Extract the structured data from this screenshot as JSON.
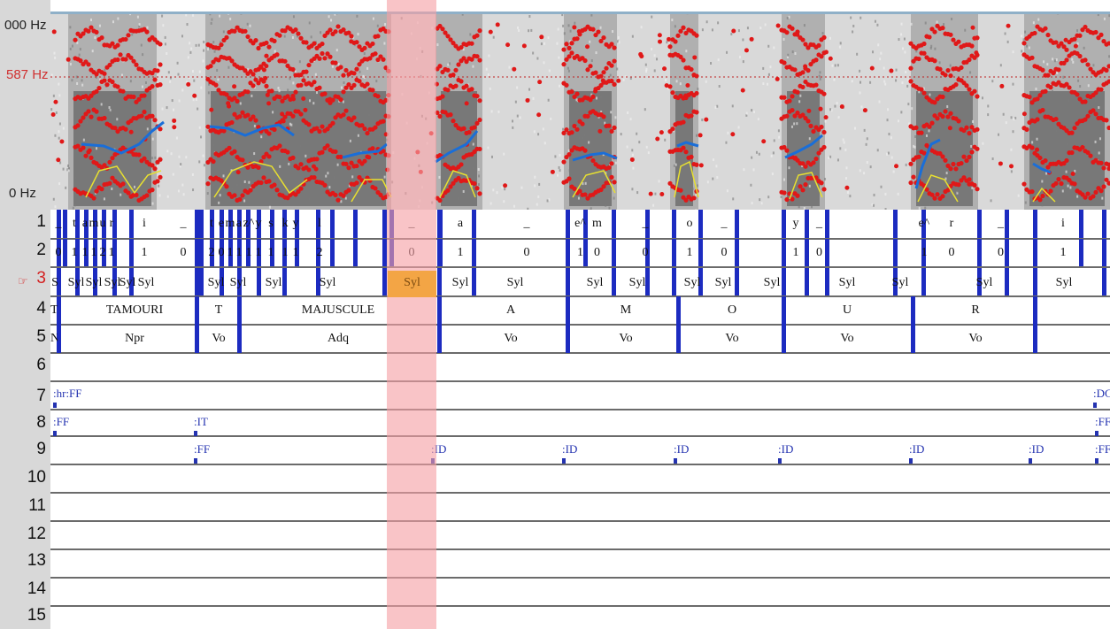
{
  "axis": {
    "top_label": "000 Hz",
    "ref_label": "587 Hz",
    "bottom_label": "0 Hz"
  },
  "active_tier_icon": "pointing-hand-icon",
  "rows": [
    "1",
    "2",
    "3",
    "4",
    "5",
    "6",
    "7",
    "8",
    "9",
    "10",
    "11",
    "12",
    "13",
    "14",
    "15"
  ],
  "tier1": [
    "_",
    "t",
    "a",
    "m",
    "u",
    "r",
    "i",
    "_",
    "t",
    "e",
    "m",
    "a",
    "z^",
    "y",
    "s",
    "k",
    "y",
    "l",
    "_",
    "a",
    "_",
    "e^",
    "m",
    "_",
    "o",
    "_",
    "y",
    "_",
    "e^",
    "r",
    "_",
    "i"
  ],
  "tier2": [
    "0",
    "1",
    "1",
    "1",
    "2",
    "1",
    "1",
    "0",
    "2",
    "0",
    "1",
    "1",
    "1",
    "1",
    "1",
    "1",
    "1",
    "2",
    "0",
    "1",
    "0",
    "1",
    "0",
    "0",
    "1",
    "0",
    "1",
    "0",
    "1",
    "0",
    "0",
    "1"
  ],
  "tier3": [
    "S",
    "Syl",
    "Syl",
    "Syl",
    "Syl",
    "Syl",
    "Syl",
    "Syl",
    "Syl",
    "Syl",
    "Syl",
    "Syl",
    "Syl",
    "Syl",
    "Syl",
    "Syl",
    "Syl",
    "Syl",
    "Syl",
    "Syl",
    "Syl",
    "Syl"
  ],
  "tier4": [
    "T",
    "TAMOURI",
    "T",
    "MAJUSCULE",
    "A",
    "M",
    "O",
    "U",
    "R"
  ],
  "tier5": [
    "N",
    "Npr",
    "Vo",
    "Adq",
    "Vo",
    "Vo",
    "Vo",
    "Vo",
    "Vo"
  ],
  "tier7": [
    ":hr:FF",
    ":DC"
  ],
  "tier8": [
    ":FF",
    ":IT",
    ":FF"
  ],
  "tier9": [
    ":FF",
    ":ID",
    ":ID",
    ":ID",
    ":ID",
    ":ID",
    ":ID",
    ":FF"
  ],
  "colors": {
    "boundary": "#1c2bc0",
    "selection": "#f5a0a5",
    "selected_cell": "#f3a545",
    "formant": "#e01818",
    "pitch": "#1a6ed8",
    "intensity": "#e8e030"
  }
}
